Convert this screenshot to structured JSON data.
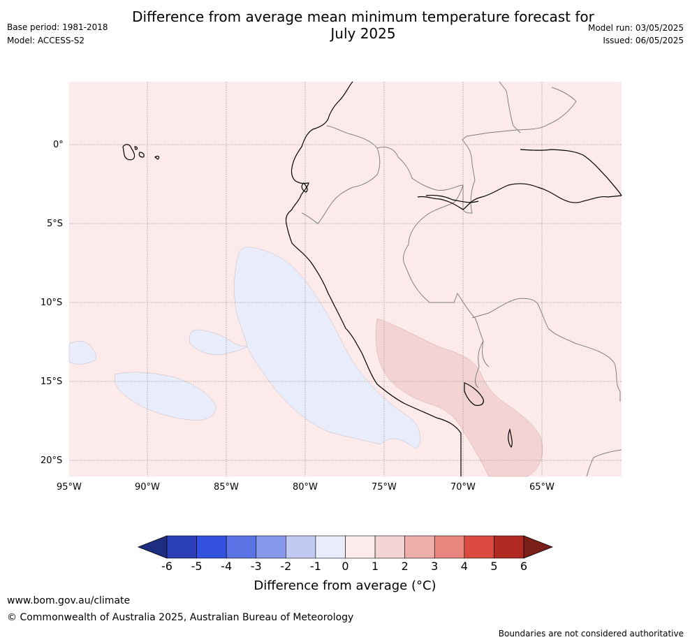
{
  "title_line1": "Difference from average mean minimum temperature forecast for",
  "title_line2": "July 2025",
  "base_period": "Base period: 1981-2018",
  "model": "Model: ACCESS-S2",
  "model_run": "Model run: 03/05/2025",
  "issued": "Issued: 06/05/2025",
  "lon_labels": [
    "95°W",
    "90°W",
    "85°W",
    "80°W",
    "75°W",
    "70°W",
    "65°W"
  ],
  "lat_labels": [
    "0°",
    "5°S",
    "10°S",
    "15°S",
    "20°S"
  ],
  "colorbar": {
    "ticks": [
      "-6",
      "-5",
      "-4",
      "-3",
      "-2",
      "-1",
      "0",
      "1",
      "2",
      "3",
      "4",
      "5",
      "6"
    ],
    "title": "Difference from average (°C)",
    "colors": [
      "#1f2d80",
      "#2a3fb8",
      "#3352e0",
      "#5a74e6",
      "#8798ec",
      "#c2caf4",
      "#e8ecfb",
      "#fcebea",
      "#f4d4d3",
      "#eeaeab",
      "#e8857e",
      "#da4a3f",
      "#b02a22",
      "#7a1e18"
    ]
  },
  "map_colors": {
    "land_border": "#808080",
    "coast": "#000000",
    "above": "#fcebea",
    "below": "#e8ecfb",
    "warm": "#f4d4d3",
    "grid": "#9a9a9a"
  },
  "footer": {
    "url": "www.bom.gov.au/climate",
    "copyright": "© Commonwealth of Australia 2025, Australian Bureau of Meteorology",
    "disclaimer": "Boundaries are not considered authoritative"
  }
}
